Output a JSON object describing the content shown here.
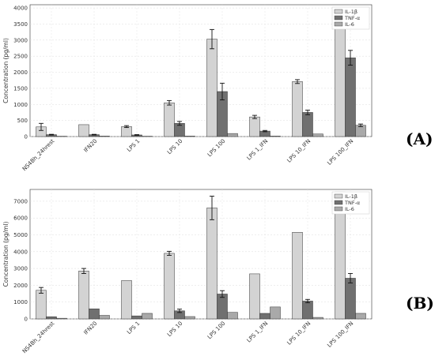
{
  "chart_data": [
    {
      "type": "bar",
      "panel_label": "(A)",
      "categories": [
        "NS4Bh_24hrest",
        "IFN20",
        "LPS 1",
        "LPS 10",
        "LPS 100",
        "LPS 1_IFN",
        "LPS 10_IFN",
        "LPS 100_IFN"
      ],
      "ylabel": "Concentration (pg/ml)",
      "ylim": [
        0,
        4100
      ],
      "yticks": [
        0,
        500,
        1000,
        1500,
        2000,
        2500,
        3000,
        3500,
        4000
      ],
      "grid": true,
      "legend": "top-right",
      "series": [
        {
          "name": "IL-1β",
          "color": "#d3d3d3",
          "values": [
            300,
            370,
            310,
            1050,
            3030,
            610,
            1710,
            3870
          ],
          "errors": [
            110,
            0,
            30,
            70,
            300,
            50,
            60,
            90
          ]
        },
        {
          "name": "TNF-α",
          "color": "#707070",
          "values": [
            60,
            60,
            50,
            410,
            1400,
            170,
            750,
            2450
          ],
          "errors": [
            10,
            10,
            10,
            60,
            260,
            20,
            70,
            230
          ]
        },
        {
          "name": "IL-6",
          "color": "#a9a9a9",
          "values": [
            10,
            15,
            10,
            15,
            95,
            15,
            80,
            350
          ],
          "errors": [
            0,
            0,
            0,
            0,
            0,
            0,
            0,
            40
          ]
        }
      ]
    },
    {
      "type": "bar",
      "panel_label": "(B)",
      "categories": [
        "NS4Bh_24hrest",
        "IFN20",
        "LPS 1",
        "LPS 10",
        "LPS 100",
        "LPS 1_IFN",
        "LPS 10_IFN",
        "LPS 100_IFN"
      ],
      "ylabel": "Concentration (pg/ml)",
      "ylim": [
        0,
        7700
      ],
      "yticks": [
        0,
        1000,
        2000,
        3000,
        4000,
        5000,
        6000,
        7000
      ],
      "grid": true,
      "legend": "top-right",
      "series": [
        {
          "name": "IL-1β",
          "color": "#d3d3d3",
          "values": [
            1700,
            2850,
            2280,
            3900,
            6600,
            2680,
            5150,
            7550
          ],
          "errors": [
            170,
            150,
            0,
            120,
            700,
            0,
            0,
            0
          ]
        },
        {
          "name": "TNF-α",
          "color": "#707070",
          "values": [
            130,
            600,
            180,
            480,
            1480,
            330,
            1060,
            2420
          ],
          "errors": [
            0,
            0,
            0,
            100,
            200,
            0,
            100,
            280
          ]
        },
        {
          "name": "IL-6",
          "color": "#a9a9a9",
          "values": [
            40,
            210,
            330,
            140,
            390,
            710,
            90,
            330
          ],
          "errors": [
            0,
            0,
            0,
            0,
            0,
            0,
            0,
            0
          ]
        }
      ]
    }
  ]
}
